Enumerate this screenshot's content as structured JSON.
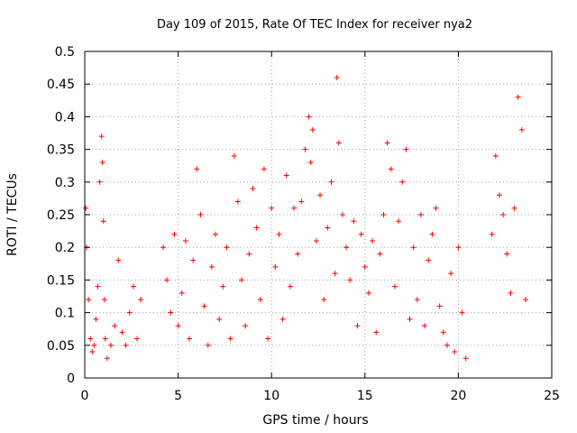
{
  "chart_data": {
    "type": "scatter",
    "title": "Day 109 of 2015, Rate Of TEC Index for receiver nya2",
    "xlabel": "GPS time / hours",
    "ylabel": "ROTI / TECUs",
    "xlim": [
      0,
      25
    ],
    "ylim": [
      0,
      0.5
    ],
    "xticks": [
      0,
      5,
      10,
      15,
      20,
      25
    ],
    "xtick_labels": [
      "0",
      "5",
      "10",
      "15",
      "20",
      "25"
    ],
    "yticks": [
      0,
      0.05,
      0.1,
      0.15,
      0.2,
      0.25,
      0.3,
      0.35,
      0.4,
      0.45,
      0.5
    ],
    "ytick_labels": [
      "0",
      "0.05",
      "0.1",
      "0.15",
      "0.2",
      "0.25",
      "0.3",
      "0.35",
      "0.4",
      "0.45",
      "0.5"
    ],
    "grid": true,
    "marker": "+",
    "color": "#ff0000",
    "series": [
      {
        "x": [
          0.05,
          0.1,
          0.2,
          0.3,
          0.4,
          0.5,
          0.6,
          0.7,
          0.8,
          0.9,
          0.95,
          1.0,
          1.05,
          1.1,
          1.2,
          1.4,
          1.6,
          1.8,
          2.0,
          2.2,
          2.4,
          2.6,
          2.8,
          3.0,
          4.2,
          4.4,
          4.6,
          4.8,
          5.0,
          5.2,
          5.4,
          5.6,
          5.8,
          6.0,
          6.2,
          6.4,
          6.6,
          6.8,
          7.0,
          7.2,
          7.4,
          7.6,
          7.8,
          8.0,
          8.2,
          8.4,
          8.6,
          8.8,
          9.0,
          9.2,
          9.4,
          9.6,
          9.8,
          10.0,
          10.2,
          10.4,
          10.6,
          10.8,
          11.0,
          11.2,
          11.4,
          11.6,
          11.8,
          12.0,
          12.1,
          12.2,
          12.4,
          12.6,
          12.8,
          13.0,
          13.2,
          13.4,
          13.5,
          13.6,
          13.8,
          14.0,
          14.2,
          14.4,
          14.6,
          14.8,
          15.0,
          15.2,
          15.4,
          15.6,
          15.8,
          16.0,
          16.2,
          16.4,
          16.6,
          16.8,
          17.0,
          17.2,
          17.4,
          17.6,
          17.8,
          18.0,
          18.2,
          18.4,
          18.6,
          18.8,
          19.0,
          19.2,
          19.4,
          19.6,
          19.8,
          20.0,
          20.2,
          20.4,
          21.8,
          22.0,
          22.2,
          22.4,
          22.6,
          22.8,
          23.0,
          23.2,
          23.4,
          23.6
        ],
        "y": [
          0.26,
          0.2,
          0.12,
          0.06,
          0.04,
          0.05,
          0.09,
          0.14,
          0.3,
          0.37,
          0.33,
          0.24,
          0.12,
          0.06,
          0.03,
          0.05,
          0.08,
          0.18,
          0.07,
          0.05,
          0.1,
          0.14,
          0.06,
          0.12,
          0.2,
          0.15,
          0.1,
          0.22,
          0.08,
          0.13,
          0.21,
          0.06,
          0.18,
          0.32,
          0.25,
          0.11,
          0.05,
          0.17,
          0.22,
          0.09,
          0.14,
          0.2,
          0.06,
          0.34,
          0.27,
          0.15,
          0.08,
          0.19,
          0.29,
          0.23,
          0.12,
          0.32,
          0.06,
          0.26,
          0.17,
          0.22,
          0.09,
          0.31,
          0.14,
          0.26,
          0.19,
          0.27,
          0.35,
          0.4,
          0.33,
          0.38,
          0.21,
          0.28,
          0.12,
          0.23,
          0.3,
          0.16,
          0.46,
          0.36,
          0.25,
          0.2,
          0.15,
          0.24,
          0.08,
          0.22,
          0.17,
          0.13,
          0.21,
          0.07,
          0.19,
          0.25,
          0.36,
          0.32,
          0.14,
          0.24,
          0.3,
          0.35,
          0.09,
          0.2,
          0.12,
          0.25,
          0.08,
          0.18,
          0.22,
          0.26,
          0.11,
          0.07,
          0.05,
          0.16,
          0.04,
          0.2,
          0.1,
          0.03,
          0.22,
          0.34,
          0.28,
          0.25,
          0.19,
          0.13,
          0.26,
          0.43,
          0.38,
          0.12
        ]
      }
    ]
  }
}
